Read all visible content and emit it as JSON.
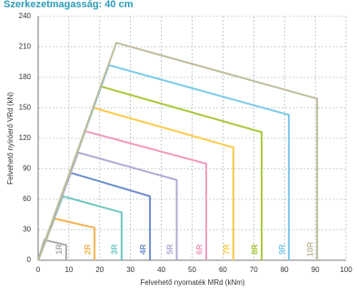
{
  "chart_data": {
    "type": "line",
    "title": "Szerkezetmagasság: 40 cm",
    "x_label": "Felvehető nyomaték MRd (kNm)",
    "y_label": "Felvehető nyíróerő VRd (kN)",
    "xlim": [
      0,
      100
    ],
    "ylim": [
      0,
      240
    ],
    "xticks": [
      0,
      10,
      20,
      30,
      40,
      50,
      60,
      70,
      80,
      90,
      100
    ],
    "yticks": [
      0,
      30,
      60,
      90,
      120,
      150,
      180,
      210,
      240
    ],
    "grid": true,
    "series": [
      {
        "name": "1R",
        "color": "#a9a9a9",
        "x": [
          0,
          2,
          9.1,
          9.1
        ],
        "values": [
          0,
          20,
          15,
          0
        ]
      },
      {
        "name": "2R",
        "color": "#f5b352",
        "x": [
          0,
          5.3,
          18.3,
          18.3
        ],
        "values": [
          0,
          41,
          32,
          0
        ]
      },
      {
        "name": "3R",
        "color": "#6cc5c0",
        "x": [
          0,
          8,
          27.1,
          27.1
        ],
        "values": [
          0,
          63,
          47,
          0
        ]
      },
      {
        "name": "4R",
        "color": "#6d8fcb",
        "x": [
          0,
          10.6,
          36.3,
          36.3
        ],
        "values": [
          0,
          86,
          63,
          0
        ]
      },
      {
        "name": "5R",
        "color": "#b2a8d4",
        "x": [
          0,
          13,
          45,
          45
        ],
        "values": [
          0,
          106,
          79,
          0
        ]
      },
      {
        "name": "6R",
        "color": "#f29ac0",
        "x": [
          0,
          15.3,
          54.6,
          54.6
        ],
        "values": [
          0,
          127,
          95,
          0
        ]
      },
      {
        "name": "7R",
        "color": "#fbcb4a",
        "x": [
          0,
          18,
          63.4,
          63.4
        ],
        "values": [
          0,
          150,
          111,
          0
        ]
      },
      {
        "name": "8R",
        "color": "#a8c838",
        "x": [
          0,
          20.4,
          72.6,
          72.6
        ],
        "values": [
          0,
          171,
          126,
          0
        ]
      },
      {
        "name": "9R",
        "color": "#7ccbea",
        "x": [
          0,
          23,
          81.4,
          81.4
        ],
        "values": [
          0,
          192,
          143,
          0
        ]
      },
      {
        "name": "10R",
        "color": "#bfbb9c",
        "x": [
          0,
          25.4,
          90.6,
          90.6
        ],
        "values": [
          0,
          214,
          159,
          0
        ]
      }
    ]
  }
}
